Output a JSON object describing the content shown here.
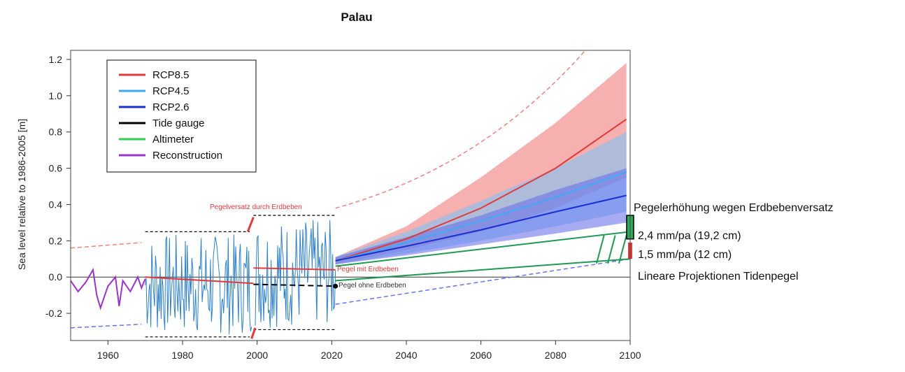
{
  "chart_data": {
    "type": "line",
    "title": "Palau",
    "xlabel": "",
    "ylabel": "Sea level relative to 1986-2005 [m]",
    "xlim": [
      1950,
      2100
    ],
    "ylim": [
      -0.35,
      1.25
    ],
    "xticks": [
      "1960",
      "1980",
      "2000",
      "2020",
      "2040",
      "2060",
      "2080",
      "2100"
    ],
    "yticks": [
      "1.2",
      "1.0",
      "0.8",
      "0.6",
      "0.4",
      "0.2",
      "0.0",
      "-0.2"
    ],
    "grid": false,
    "legend_position": "top-left",
    "legend": [
      {
        "name": "RCP8.5",
        "color": "#e03a3a"
      },
      {
        "name": "RCP4.5",
        "color": "#3fa9f5"
      },
      {
        "name": "RCP2.6",
        "color": "#1a2fd1"
      },
      {
        "name": "Tide gauge",
        "color": "#000000"
      },
      {
        "name": "Altimeter",
        "color": "#33cc55"
      },
      {
        "name": "Reconstruction",
        "color": "#9933cc"
      }
    ],
    "series": [
      {
        "name": "RCP8.5",
        "x": [
          2021,
          2040,
          2060,
          2080,
          2099
        ],
        "y": [
          0.09,
          0.21,
          0.38,
          0.6,
          0.87
        ],
        "band_low": [
          0.07,
          0.15,
          0.25,
          0.38,
          0.55
        ],
        "band_high": [
          0.11,
          0.28,
          0.55,
          0.85,
          1.18
        ]
      },
      {
        "name": "RCP4.5",
        "x": [
          2021,
          2040,
          2060,
          2080,
          2099
        ],
        "y": [
          0.09,
          0.19,
          0.31,
          0.44,
          0.58
        ],
        "band_low": [
          0.07,
          0.13,
          0.2,
          0.28,
          0.36
        ],
        "band_high": [
          0.11,
          0.25,
          0.42,
          0.6,
          0.8
        ]
      },
      {
        "name": "RCP2.6",
        "x": [
          2021,
          2040,
          2060,
          2080,
          2099
        ],
        "y": [
          0.09,
          0.17,
          0.26,
          0.36,
          0.45
        ],
        "band_low": [
          0.07,
          0.12,
          0.18,
          0.24,
          0.3
        ],
        "band_high": [
          0.11,
          0.22,
          0.34,
          0.48,
          0.6
        ]
      },
      {
        "name": "Reconstruction",
        "x": [
          1950,
          1952,
          1954,
          1956,
          1957,
          1958,
          1960,
          1962,
          1963,
          1964,
          1966,
          1968,
          1969,
          1970
        ],
        "y": [
          -0.02,
          -0.08,
          -0.03,
          0.04,
          -0.1,
          -0.17,
          -0.05,
          0.0,
          -0.16,
          -0.02,
          -0.08,
          0.0,
          -0.06,
          -0.01
        ]
      }
    ],
    "annotations": {
      "earthquake_offset": "Pegelversatz  durch Erdbeben",
      "with_quake": "Pegel mit Erdbeben",
      "without_quake": "Pegel ohne Erdbeben",
      "raise_title": "Pegelerhöhung wegen Erdbebenversatz",
      "rate_high": "2,4 mm/pa (19,2 cm)",
      "rate_low": "1,5 mm/pa (12 cm)",
      "linear_proj": "Lineare Projektionen Tidenpegel"
    }
  }
}
